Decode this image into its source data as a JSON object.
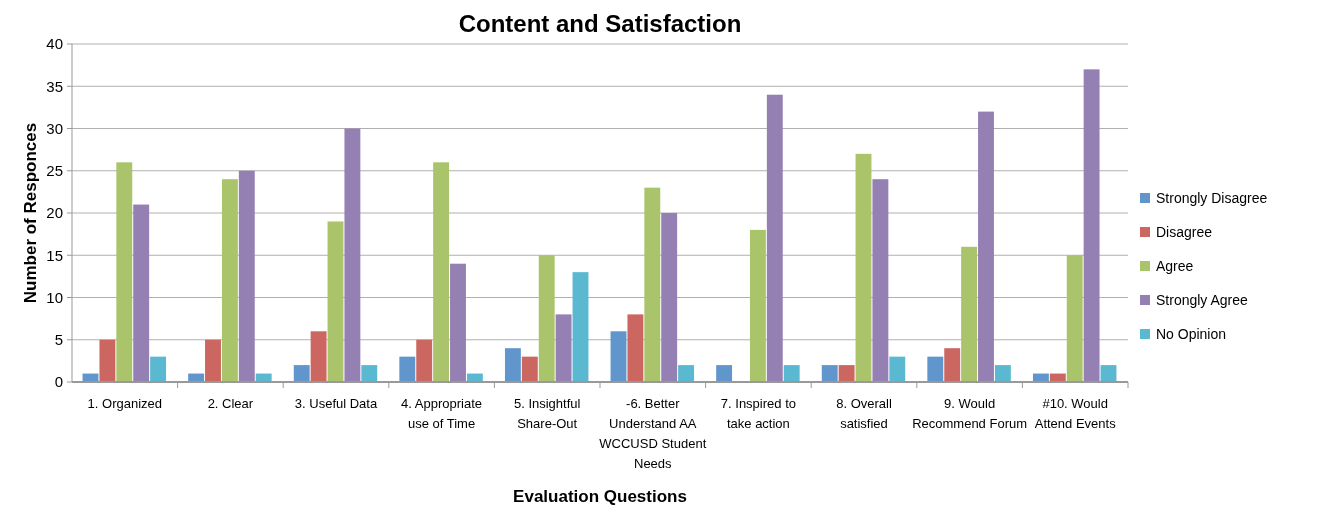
{
  "chart_data": {
    "type": "bar",
    "title": "Content and Satisfaction",
    "xlabel": "Evaluation Questions",
    "ylabel": "Number of Responces",
    "categories": [
      "1. Organized",
      "2. Clear",
      "3. Useful Data",
      "4. Appropriate use of Time",
      "5. Insightful Share-Out",
      "-6. Better Understand AA WCCUSD Student Needs",
      "7. Inspired to take action",
      "8. Overall satisfied",
      "9. Would Recommend Forum",
      "#10. Would Attend Events"
    ],
    "series": [
      {
        "name": "Strongly Disagree",
        "color": "#6096cb",
        "values": [
          1,
          1,
          2,
          3,
          4,
          6,
          2,
          2,
          3,
          1
        ]
      },
      {
        "name": "Disagree",
        "color": "#cc6660",
        "values": [
          5,
          5,
          6,
          5,
          3,
          8,
          0,
          2,
          4,
          1
        ]
      },
      {
        "name": "Agree",
        "color": "#aac46c",
        "values": [
          26,
          24,
          19,
          26,
          15,
          23,
          18,
          27,
          16,
          15
        ]
      },
      {
        "name": "Strongly Agree",
        "color": "#9580b4",
        "values": [
          21,
          25,
          30,
          14,
          8,
          20,
          34,
          24,
          32,
          37
        ]
      },
      {
        "name": "No Opinion",
        "color": "#5bb8d1",
        "values": [
          3,
          1,
          2,
          1,
          13,
          2,
          2,
          3,
          2,
          2
        ]
      }
    ],
    "ylim": [
      0,
      40
    ],
    "yticks": [
      0,
      5,
      10,
      15,
      20,
      25,
      30,
      35,
      40
    ],
    "grid": "y",
    "legend": "right"
  }
}
